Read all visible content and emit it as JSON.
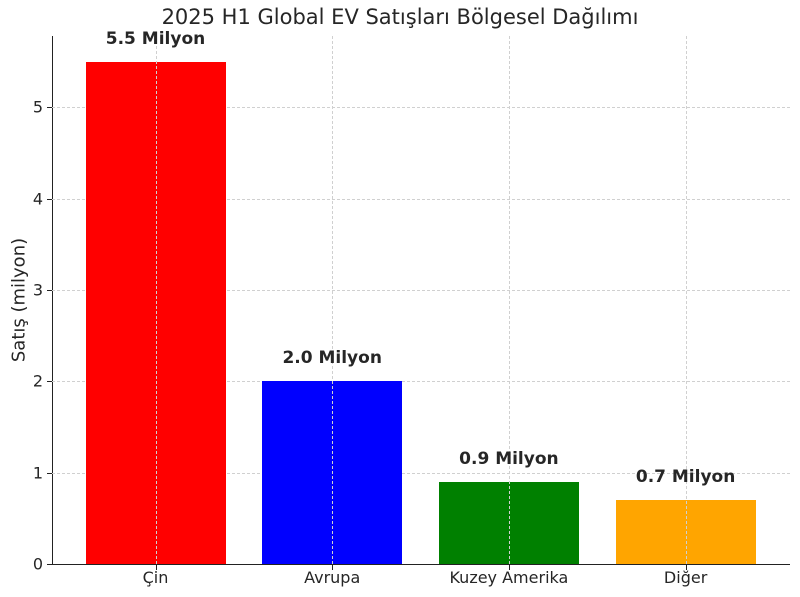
{
  "chart_data": {
    "type": "bar",
    "title": "2025 H1 Global EV Satışları Bölgesel Dağılımı",
    "xlabel": "",
    "ylabel": "Satış (milyon)",
    "categories": [
      "Çin",
      "Avrupa",
      "Kuzey Amerika",
      "Diğer"
    ],
    "values": [
      5.5,
      2.0,
      0.9,
      0.7
    ],
    "bar_labels": [
      "5.5 Milyon",
      "2.0 Milyon",
      "0.9 Milyon",
      "0.7 Milyon"
    ],
    "colors": [
      "#ff0000",
      "#0000ff",
      "#008000",
      "#ffa500"
    ],
    "ylim": [
      0,
      5.78
    ],
    "yticks": [
      0,
      1,
      2,
      3,
      4,
      5
    ],
    "grid": true,
    "legend": null
  }
}
